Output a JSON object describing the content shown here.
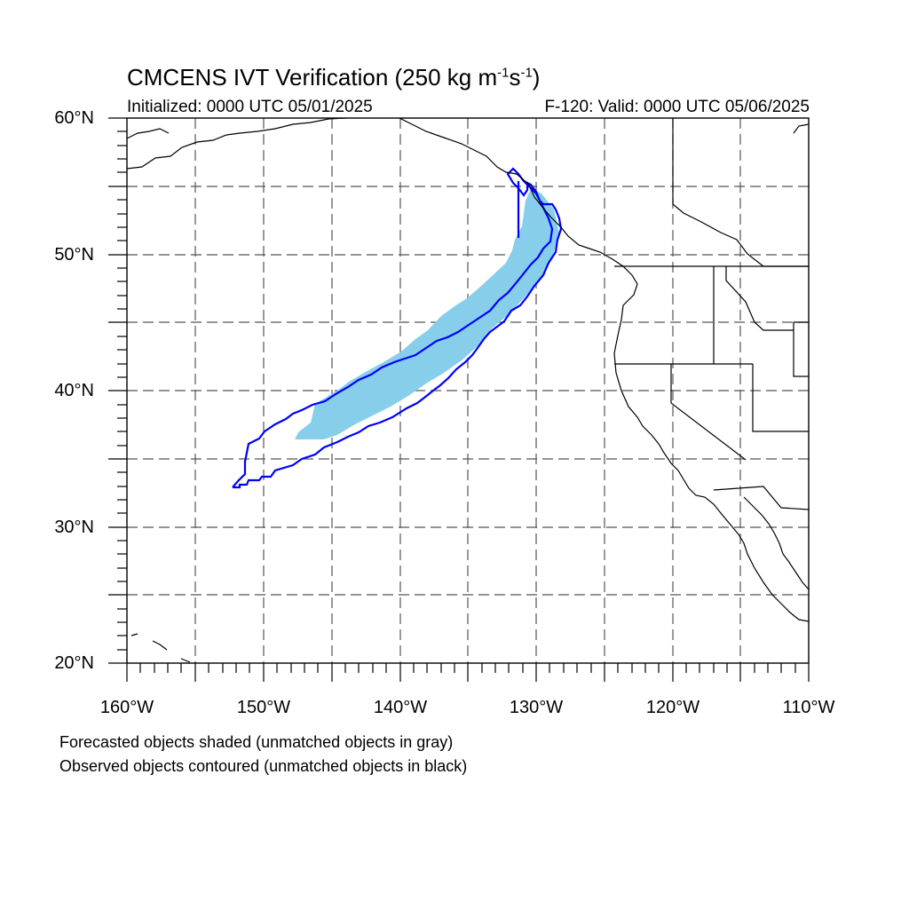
{
  "title": {
    "main": "CMCENS IVT Verification (250 kg m",
    "exp1": "-1",
    "mid": "s",
    "exp2": "-1",
    "end": ")"
  },
  "subtitle": {
    "initialized": "Initialized: 0000 UTC 05/01/2025",
    "valid": "F-120: Valid: 0000 UTC 05/06/2025"
  },
  "latitude_labels": [
    "60°N",
    "50°N",
    "40°N",
    "30°N",
    "20°N"
  ],
  "longitude_labels": [
    "160°W",
    "150°W",
    "140°W",
    "130°W",
    "120°W",
    "110°W"
  ],
  "notes": [
    "Forecasted objects shaded (unmatched objects in gray)",
    "Observed objects contoured (unmatched objects in black)"
  ],
  "colors": {
    "forecast_fill": "#87ceeb",
    "observed_contour": "#0000ff",
    "coastline": "#000000",
    "gridline": "#555555"
  },
  "map_extent": {
    "lon": [
      -160,
      -110
    ],
    "lat": [
      20,
      60
    ]
  }
}
